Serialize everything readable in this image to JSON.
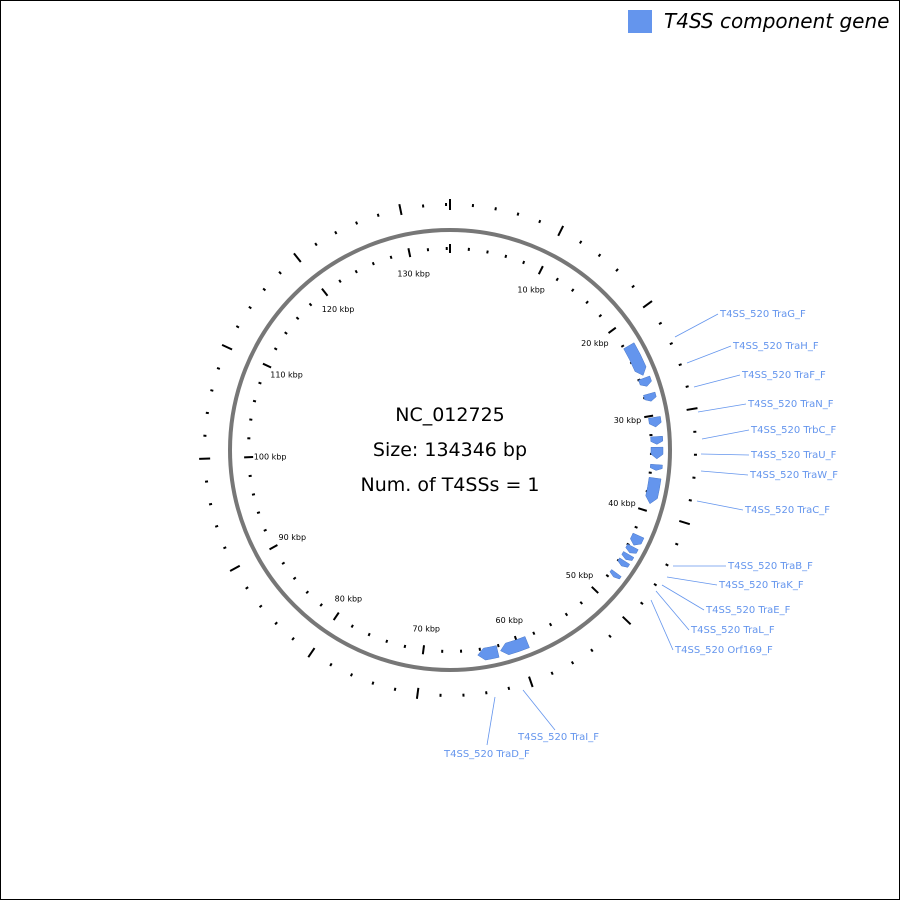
{
  "legend": {
    "label": "T4SS component gene",
    "color": "#6495ed"
  },
  "center": {
    "name": "NC_012725",
    "size": "Size: 134346 bp",
    "count": "Num. of T4SSs = 1"
  },
  "length": 134346,
  "ticks": [
    {
      "value": 10000,
      "label": "10 kbp"
    },
    {
      "value": 20000,
      "label": "20 kbp"
    },
    {
      "value": 30000,
      "label": "30 kbp"
    },
    {
      "value": 40000,
      "label": "40 kbp"
    },
    {
      "value": 50000,
      "label": "50 kbp"
    },
    {
      "value": 60000,
      "label": "60 kbp"
    },
    {
      "value": 70000,
      "label": "70 kbp"
    },
    {
      "value": 80000,
      "label": "80 kbp"
    },
    {
      "value": 90000,
      "label": "90 kbp"
    },
    {
      "value": 100000,
      "label": "100 kbp"
    },
    {
      "value": 110000,
      "label": "110 kbp"
    },
    {
      "value": 120000,
      "label": "120 kbp"
    },
    {
      "value": 130000,
      "label": "130 kbp"
    }
  ],
  "genes": [
    {
      "label": "T4SS_520 TraG_F",
      "start": 22300,
      "end": 25700
    },
    {
      "label": "T4SS_520 TraH_F",
      "start": 26000,
      "end": 26900
    },
    {
      "label": "T4SS_520 TraF_F",
      "start": 27700,
      "end": 28500
    },
    {
      "label": "T4SS_520 TraN_F",
      "start": 30200,
      "end": 31200
    },
    {
      "label": "T4SS_520 TrbC_F",
      "start": 32200,
      "end": 33000
    },
    {
      "label": "T4SS_520 TraU_F",
      "start": 33300,
      "end": 34500
    },
    {
      "label": "T4SS_520 TraW_F",
      "start": 35100,
      "end": 35700
    },
    {
      "label": "T4SS_520 TraC_F",
      "start": 36500,
      "end": 39200
    },
    {
      "label": "T4SS_520 TraB_F",
      "start": 42700,
      "end": 43800
    },
    {
      "label": "T4SS_520 TraK_F",
      "start": 44000,
      "end": 44700
    },
    {
      "label": "T4SS_520 TraE_F",
      "start": 44900,
      "end": 45500
    },
    {
      "label": "T4SS_520 TraL_F",
      "start": 45700,
      "end": 46300
    },
    {
      "label": "T4SS_520 Orf169_F",
      "start": 47200,
      "end": 47700
    },
    {
      "label": "T4SS_520 TraI_F",
      "start": 59000,
      "end": 61900
    },
    {
      "label": "T4SS_520 TraD_F",
      "start": 62200,
      "end": 64300
    }
  ]
}
